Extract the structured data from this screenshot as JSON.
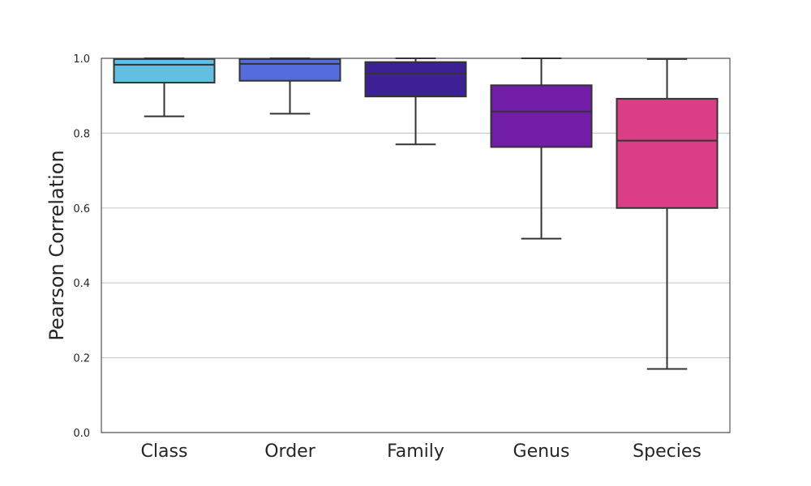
{
  "chart_data": {
    "type": "box",
    "title": "",
    "xlabel": "",
    "ylabel": "Pearson Correlation",
    "ylim": [
      0,
      1
    ],
    "yticks": [
      "0.0",
      "0.2",
      "0.4",
      "0.6",
      "0.8",
      "1.0"
    ],
    "grid": "horizontal",
    "categories": [
      "Class",
      "Order",
      "Family",
      "Genus",
      "Species"
    ],
    "boxes": [
      {
        "category": "Class",
        "whisker_low": 0.845,
        "q1": 0.935,
        "median": 0.983,
        "q3": 0.998,
        "whisker_high": 1.0,
        "color": "#62bfe2"
      },
      {
        "category": "Order",
        "whisker_low": 0.852,
        "q1": 0.94,
        "median": 0.985,
        "q3": 0.998,
        "whisker_high": 1.0,
        "color": "#556cdc"
      },
      {
        "category": "Family",
        "whisker_low": 0.77,
        "q1": 0.898,
        "median": 0.96,
        "q3": 0.99,
        "whisker_high": 1.0,
        "color": "#3d2093"
      },
      {
        "category": "Genus",
        "whisker_low": 0.518,
        "q1": 0.763,
        "median": 0.858,
        "q3": 0.928,
        "whisker_high": 1.0,
        "color": "#721da7"
      },
      {
        "category": "Species",
        "whisker_low": 0.17,
        "q1": 0.6,
        "median": 0.78,
        "q3": 0.892,
        "whisker_high": 0.998,
        "color": "#dc3e85"
      }
    ]
  }
}
